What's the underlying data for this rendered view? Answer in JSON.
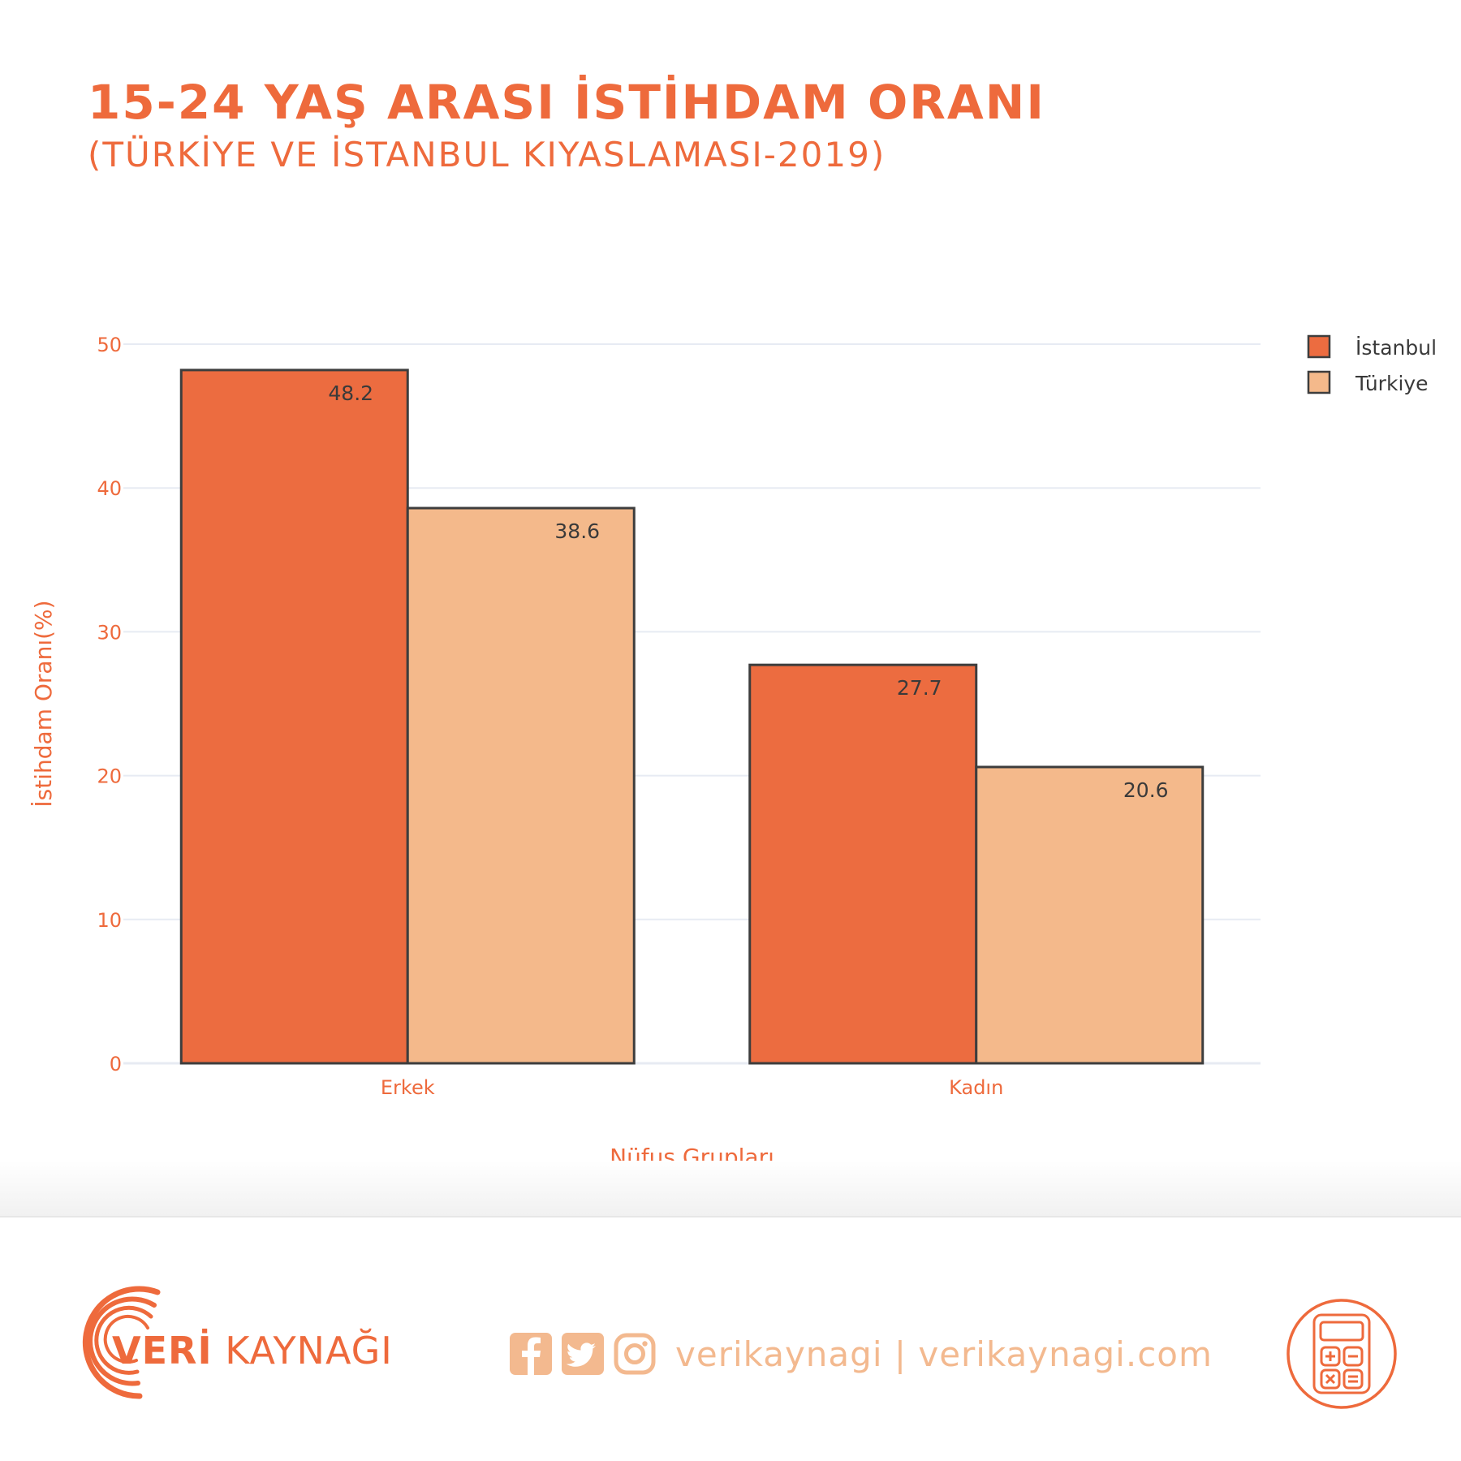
{
  "header": {
    "title": "15-24 YAŞ ARASI İSTİHDAM ORANI",
    "subtitle": "(TÜRKİYE VE İSTANBUL KIYASLAMASI-2019)"
  },
  "chart_data": {
    "type": "bar",
    "categories": [
      "Erkek",
      "Kadın"
    ],
    "series": [
      {
        "name": "İstanbul",
        "values": [
          48.2,
          27.7
        ],
        "color": "#ec6c40"
      },
      {
        "name": "Türkiye",
        "values": [
          38.6,
          20.6
        ],
        "color": "#f4b98b"
      }
    ],
    "xlabel": "Nüfus Grupları",
    "ylabel": "İstihdam Oranı(%)",
    "ylim": [
      0,
      50
    ],
    "yticks": [
      0,
      10,
      20,
      30,
      40,
      50
    ],
    "grid": true,
    "legend_position": "top-right"
  },
  "footer": {
    "logo_bold": "VERİ",
    "logo_light": "KAYNAĞI",
    "social_text": "verikaynagi | verikaynagi.com",
    "icons": [
      "facebook-icon",
      "twitter-icon",
      "instagram-icon",
      "calculator-icon"
    ]
  }
}
